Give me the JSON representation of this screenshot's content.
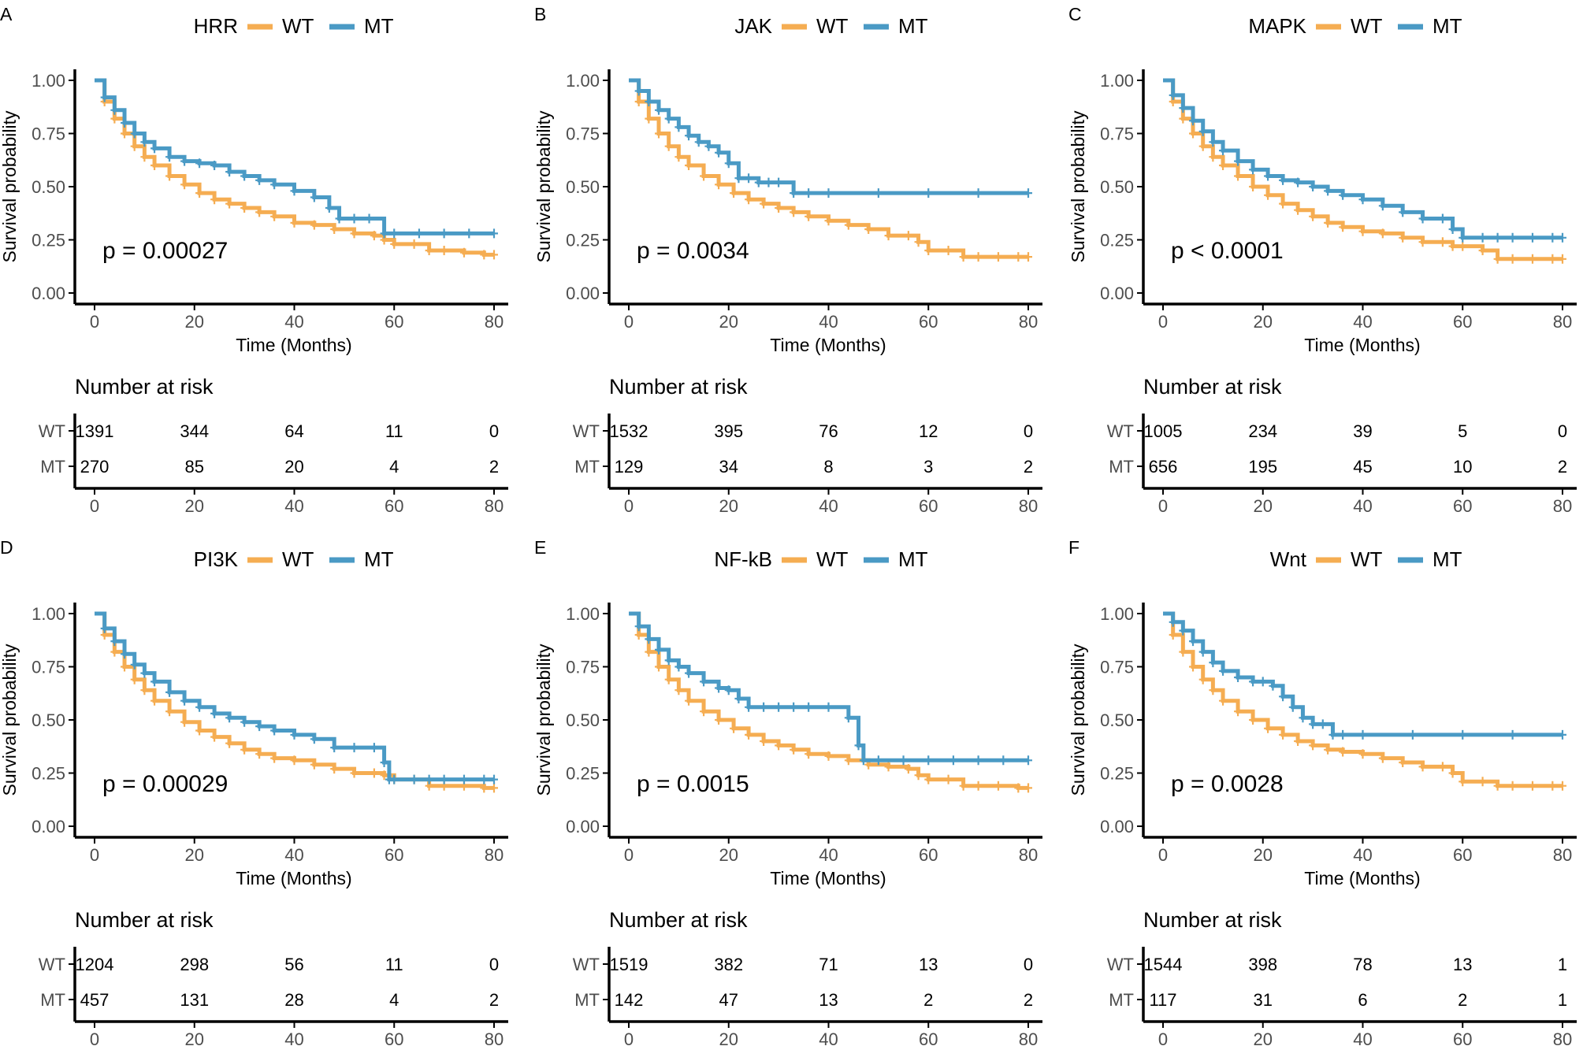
{
  "figure": {
    "strata_label_wt": "WT",
    "strata_label_mt": "MT",
    "colors": {
      "wt": "#F5AD52",
      "mt": "#4A9AC5",
      "axis": "#000000",
      "tick_text": "#4D4D4D"
    }
  },
  "chart_data": [
    {
      "type": "line",
      "panel": "A",
      "title": "HRR",
      "xlabel": "Time (Months)",
      "ylabel": "Survival probability",
      "xlim": [
        0,
        80
      ],
      "ylim": [
        0,
        1
      ],
      "x_ticks": [
        "0",
        "20",
        "40",
        "60",
        "80"
      ],
      "y_ticks": [
        "0.00",
        "0.25",
        "0.50",
        "0.75",
        "1.00"
      ],
      "pvalue": "p = 0.00027",
      "legend": [
        "WT",
        "MT"
      ],
      "series": [
        {
          "name": "WT",
          "x": [
            0,
            2,
            4,
            6,
            8,
            10,
            12,
            15,
            18,
            21,
            24,
            27,
            30,
            33,
            36,
            40,
            44,
            48,
            52,
            56,
            58,
            60,
            64,
            67,
            70,
            74,
            78,
            80
          ],
          "values": [
            1.0,
            0.9,
            0.82,
            0.75,
            0.69,
            0.64,
            0.6,
            0.55,
            0.51,
            0.47,
            0.44,
            0.42,
            0.4,
            0.38,
            0.36,
            0.33,
            0.32,
            0.3,
            0.28,
            0.27,
            0.25,
            0.23,
            0.23,
            0.2,
            0.2,
            0.19,
            0.18,
            0.18
          ]
        },
        {
          "name": "MT",
          "x": [
            0,
            2,
            4,
            6,
            8,
            10,
            12,
            15,
            18,
            21,
            24,
            27,
            30,
            33,
            36,
            40,
            44,
            47,
            49,
            52,
            55,
            58,
            60,
            65,
            70,
            75,
            80
          ],
          "values": [
            1.0,
            0.92,
            0.86,
            0.8,
            0.75,
            0.71,
            0.68,
            0.64,
            0.62,
            0.61,
            0.6,
            0.57,
            0.55,
            0.53,
            0.51,
            0.48,
            0.45,
            0.4,
            0.35,
            0.35,
            0.35,
            0.28,
            0.28,
            0.28,
            0.28,
            0.28,
            0.28
          ]
        }
      ],
      "risk_table": {
        "title": "Number at risk",
        "times": [
          "0",
          "20",
          "40",
          "60",
          "80"
        ],
        "WT": [
          "1391",
          "344",
          "64",
          "11",
          "0"
        ],
        "MT": [
          "270",
          "85",
          "20",
          "4",
          "2"
        ]
      }
    },
    {
      "type": "line",
      "panel": "B",
      "title": "JAK",
      "xlabel": "Time (Months)",
      "ylabel": "Survival probability",
      "xlim": [
        0,
        80
      ],
      "ylim": [
        0,
        1
      ],
      "x_ticks": [
        "0",
        "20",
        "40",
        "60",
        "80"
      ],
      "y_ticks": [
        "0.00",
        "0.25",
        "0.50",
        "0.75",
        "1.00"
      ],
      "pvalue": "p = 0.0034",
      "legend": [
        "WT",
        "MT"
      ],
      "series": [
        {
          "name": "WT",
          "x": [
            0,
            2,
            4,
            6,
            8,
            10,
            12,
            15,
            18,
            21,
            24,
            27,
            30,
            33,
            36,
            40,
            44,
            48,
            52,
            56,
            58,
            60,
            64,
            67,
            70,
            74,
            78,
            80
          ],
          "values": [
            1.0,
            0.9,
            0.82,
            0.75,
            0.69,
            0.64,
            0.6,
            0.55,
            0.51,
            0.47,
            0.44,
            0.42,
            0.4,
            0.38,
            0.36,
            0.34,
            0.32,
            0.3,
            0.27,
            0.27,
            0.24,
            0.2,
            0.2,
            0.17,
            0.17,
            0.17,
            0.17,
            0.17
          ]
        },
        {
          "name": "MT",
          "x": [
            0,
            2,
            4,
            6,
            8,
            10,
            12,
            14,
            16,
            18,
            20,
            22,
            24,
            26,
            28,
            30,
            33,
            36,
            40,
            50,
            60,
            70,
            80
          ],
          "values": [
            1.0,
            0.95,
            0.9,
            0.86,
            0.82,
            0.78,
            0.74,
            0.71,
            0.69,
            0.66,
            0.61,
            0.54,
            0.54,
            0.52,
            0.52,
            0.52,
            0.47,
            0.47,
            0.47,
            0.47,
            0.47,
            0.47,
            0.47
          ]
        }
      ],
      "risk_table": {
        "title": "Number at risk",
        "times": [
          "0",
          "20",
          "40",
          "60",
          "80"
        ],
        "WT": [
          "1532",
          "395",
          "76",
          "12",
          "0"
        ],
        "MT": [
          "129",
          "34",
          "8",
          "3",
          "2"
        ]
      }
    },
    {
      "type": "line",
      "panel": "C",
      "title": "MAPK",
      "xlabel": "Time (Months)",
      "ylabel": "Survival probability",
      "xlim": [
        0,
        80
      ],
      "ylim": [
        0,
        1
      ],
      "x_ticks": [
        "0",
        "20",
        "40",
        "60",
        "80"
      ],
      "y_ticks": [
        "0.00",
        "0.25",
        "0.50",
        "0.75",
        "1.00"
      ],
      "pvalue": "p < 0.0001",
      "legend": [
        "WT",
        "MT"
      ],
      "series": [
        {
          "name": "WT",
          "x": [
            0,
            2,
            4,
            6,
            8,
            10,
            12,
            15,
            18,
            21,
            24,
            27,
            30,
            33,
            36,
            40,
            44,
            48,
            52,
            56,
            58,
            60,
            64,
            67,
            70,
            74,
            78,
            80
          ],
          "values": [
            1.0,
            0.9,
            0.82,
            0.75,
            0.69,
            0.64,
            0.6,
            0.55,
            0.5,
            0.46,
            0.42,
            0.39,
            0.36,
            0.33,
            0.31,
            0.29,
            0.28,
            0.26,
            0.24,
            0.24,
            0.22,
            0.22,
            0.2,
            0.16,
            0.16,
            0.16,
            0.16,
            0.16
          ]
        },
        {
          "name": "MT",
          "x": [
            0,
            2,
            4,
            6,
            8,
            10,
            12,
            15,
            18,
            21,
            24,
            27,
            30,
            33,
            36,
            40,
            44,
            48,
            52,
            56,
            58,
            60,
            64,
            67,
            70,
            74,
            78,
            80
          ],
          "values": [
            1.0,
            0.93,
            0.87,
            0.81,
            0.76,
            0.71,
            0.67,
            0.62,
            0.58,
            0.55,
            0.53,
            0.52,
            0.5,
            0.48,
            0.46,
            0.44,
            0.41,
            0.38,
            0.35,
            0.35,
            0.3,
            0.26,
            0.26,
            0.26,
            0.26,
            0.26,
            0.26,
            0.26
          ]
        }
      ],
      "risk_table": {
        "title": "Number at risk",
        "times": [
          "0",
          "20",
          "40",
          "60",
          "80"
        ],
        "WT": [
          "1005",
          "234",
          "39",
          "5",
          "0"
        ],
        "MT": [
          "656",
          "195",
          "45",
          "10",
          "2"
        ]
      }
    },
    {
      "type": "line",
      "panel": "D",
      "title": "PI3K",
      "xlabel": "Time (Months)",
      "ylabel": "Survival probability",
      "xlim": [
        0,
        80
      ],
      "ylim": [
        0,
        1
      ],
      "x_ticks": [
        "0",
        "20",
        "40",
        "60",
        "80"
      ],
      "y_ticks": [
        "0.00",
        "0.25",
        "0.50",
        "0.75",
        "1.00"
      ],
      "pvalue": "p = 0.00029",
      "legend": [
        "WT",
        "MT"
      ],
      "series": [
        {
          "name": "WT",
          "x": [
            0,
            2,
            4,
            6,
            8,
            10,
            12,
            15,
            18,
            21,
            24,
            27,
            30,
            33,
            36,
            40,
            44,
            48,
            52,
            56,
            58,
            60,
            64,
            67,
            70,
            74,
            78,
            80
          ],
          "values": [
            1.0,
            0.9,
            0.82,
            0.75,
            0.69,
            0.64,
            0.59,
            0.54,
            0.49,
            0.45,
            0.42,
            0.39,
            0.36,
            0.34,
            0.32,
            0.31,
            0.29,
            0.27,
            0.25,
            0.25,
            0.24,
            0.22,
            0.22,
            0.19,
            0.19,
            0.19,
            0.18,
            0.18
          ]
        },
        {
          "name": "MT",
          "x": [
            0,
            2,
            4,
            6,
            8,
            10,
            12,
            15,
            18,
            21,
            24,
            27,
            30,
            33,
            36,
            40,
            44,
            48,
            52,
            56,
            58,
            59,
            60,
            64,
            67,
            70,
            74,
            78,
            80
          ],
          "values": [
            1.0,
            0.93,
            0.87,
            0.81,
            0.76,
            0.72,
            0.68,
            0.63,
            0.59,
            0.56,
            0.53,
            0.51,
            0.49,
            0.47,
            0.45,
            0.43,
            0.41,
            0.37,
            0.37,
            0.37,
            0.3,
            0.22,
            0.22,
            0.22,
            0.22,
            0.22,
            0.22,
            0.22,
            0.22
          ]
        }
      ],
      "risk_table": {
        "title": "Number at risk",
        "times": [
          "0",
          "20",
          "40",
          "60",
          "80"
        ],
        "WT": [
          "1204",
          "298",
          "56",
          "11",
          "0"
        ],
        "MT": [
          "457",
          "131",
          "28",
          "4",
          "2"
        ]
      }
    },
    {
      "type": "line",
      "panel": "E",
      "title": "NF-kB",
      "xlabel": "Time (Months)",
      "ylabel": "Survival probability",
      "xlim": [
        0,
        80
      ],
      "ylim": [
        0,
        1
      ],
      "x_ticks": [
        "0",
        "20",
        "40",
        "60",
        "80"
      ],
      "y_ticks": [
        "0.00",
        "0.25",
        "0.50",
        "0.75",
        "1.00"
      ],
      "pvalue": "p = 0.0015",
      "legend": [
        "WT",
        "MT"
      ],
      "series": [
        {
          "name": "WT",
          "x": [
            0,
            2,
            4,
            6,
            8,
            10,
            12,
            15,
            18,
            21,
            24,
            27,
            30,
            33,
            36,
            40,
            44,
            48,
            52,
            56,
            58,
            60,
            64,
            67,
            70,
            74,
            78,
            80
          ],
          "values": [
            1.0,
            0.9,
            0.82,
            0.75,
            0.69,
            0.64,
            0.59,
            0.54,
            0.5,
            0.46,
            0.43,
            0.4,
            0.38,
            0.36,
            0.34,
            0.33,
            0.31,
            0.29,
            0.28,
            0.27,
            0.24,
            0.22,
            0.22,
            0.19,
            0.19,
            0.19,
            0.18,
            0.18
          ]
        },
        {
          "name": "MT",
          "x": [
            0,
            2,
            4,
            6,
            8,
            10,
            12,
            15,
            18,
            20,
            22,
            24,
            27,
            30,
            33,
            36,
            40,
            44,
            46,
            47,
            50,
            55,
            60,
            65,
            70,
            75,
            80
          ],
          "values": [
            1.0,
            0.94,
            0.88,
            0.83,
            0.78,
            0.75,
            0.72,
            0.68,
            0.65,
            0.64,
            0.6,
            0.56,
            0.56,
            0.56,
            0.56,
            0.56,
            0.56,
            0.51,
            0.38,
            0.31,
            0.31,
            0.31,
            0.31,
            0.31,
            0.31,
            0.31,
            0.31
          ]
        }
      ],
      "risk_table": {
        "title": "Number at risk",
        "times": [
          "0",
          "20",
          "40",
          "60",
          "80"
        ],
        "WT": [
          "1519",
          "382",
          "71",
          "13",
          "0"
        ],
        "MT": [
          "142",
          "47",
          "13",
          "2",
          "2"
        ]
      }
    },
    {
      "type": "line",
      "panel": "F",
      "title": "Wnt",
      "xlabel": "Time (Months)",
      "ylabel": "Survival probability",
      "xlim": [
        0,
        80
      ],
      "ylim": [
        0,
        1
      ],
      "x_ticks": [
        "0",
        "20",
        "40",
        "60",
        "80"
      ],
      "y_ticks": [
        "0.00",
        "0.25",
        "0.50",
        "0.75",
        "1.00"
      ],
      "pvalue": "p = 0.0028",
      "legend": [
        "WT",
        "MT"
      ],
      "series": [
        {
          "name": "WT",
          "x": [
            0,
            2,
            4,
            6,
            8,
            10,
            12,
            15,
            18,
            21,
            24,
            27,
            30,
            33,
            36,
            40,
            44,
            48,
            52,
            56,
            58,
            60,
            64,
            67,
            70,
            74,
            78,
            80
          ],
          "values": [
            1.0,
            0.9,
            0.82,
            0.75,
            0.69,
            0.64,
            0.59,
            0.54,
            0.5,
            0.46,
            0.43,
            0.4,
            0.38,
            0.36,
            0.35,
            0.34,
            0.32,
            0.3,
            0.28,
            0.28,
            0.25,
            0.21,
            0.21,
            0.19,
            0.19,
            0.19,
            0.19,
            0.19
          ]
        },
        {
          "name": "MT",
          "x": [
            0,
            2,
            4,
            6,
            8,
            10,
            12,
            15,
            18,
            20,
            22,
            24,
            26,
            28,
            30,
            32,
            34,
            36,
            40,
            50,
            60,
            70,
            80
          ],
          "values": [
            1.0,
            0.96,
            0.92,
            0.87,
            0.82,
            0.77,
            0.73,
            0.7,
            0.68,
            0.68,
            0.66,
            0.61,
            0.56,
            0.51,
            0.48,
            0.48,
            0.43,
            0.43,
            0.43,
            0.43,
            0.43,
            0.43,
            0.43
          ]
        }
      ],
      "risk_table": {
        "title": "Number at risk",
        "times": [
          "0",
          "20",
          "40",
          "60",
          "80"
        ],
        "WT": [
          "1544",
          "398",
          "78",
          "13",
          "1"
        ],
        "MT": [
          "117",
          "31",
          "6",
          "2",
          "1"
        ]
      }
    }
  ]
}
